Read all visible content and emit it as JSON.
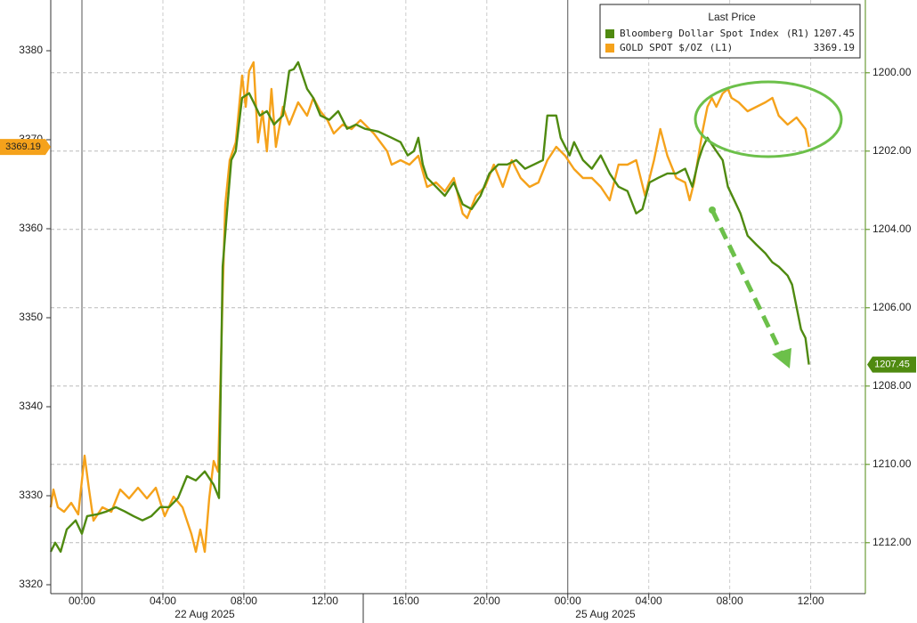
{
  "chart_data": {
    "type": "line",
    "legend_title": "Last Price",
    "legend": "top-right",
    "xlim": [
      -1.54,
      38.7
    ],
    "xticks": [
      {
        "value": 0,
        "label": "00:00"
      },
      {
        "value": 4,
        "label": "04:00"
      },
      {
        "value": 8,
        "label": "08:00"
      },
      {
        "value": 12,
        "label": "12:00"
      },
      {
        "value": 16,
        "label": "16:00"
      },
      {
        "value": 20,
        "label": "20:00"
      },
      {
        "value": 24,
        "label": "00:00"
      },
      {
        "value": 28,
        "label": "04:00"
      },
      {
        "value": 32,
        "label": "08:00"
      },
      {
        "value": 36,
        "label": "12:00"
      }
    ],
    "dates": [
      "22 Aug 2025",
      "25 Aug 2025"
    ],
    "ylim": [
      3319,
      3385
    ],
    "yticks": [
      3320,
      3330,
      3340,
      3350,
      3360,
      3370,
      3380
    ],
    "y2lim": [
      1213.3,
      1198.3
    ],
    "y2ticks": [
      {
        "value": 1200,
        "label": "1200.00"
      },
      {
        "value": 1202,
        "label": "1202.00"
      },
      {
        "value": 1204,
        "label": "1204.00"
      },
      {
        "value": 1206,
        "label": "1206.00"
      },
      {
        "value": 1208,
        "label": "1208.00"
      },
      {
        "value": 1210,
        "label": "1210.00"
      },
      {
        "value": 1212,
        "label": "1212.00"
      }
    ],
    "grid": true,
    "series": [
      {
        "name": "Bloomberg Dollar Spot Index",
        "axis_label": "(R1)",
        "last_value": 1207.45,
        "axis": "y2",
        "color": "#4f8a10",
        "x": [
          -1.54,
          -1.32,
          -1.05,
          -0.75,
          -0.31,
          0,
          0.26,
          0.79,
          1.23,
          1.67,
          2.11,
          2.55,
          2.99,
          3.43,
          3.87,
          4.31,
          4.75,
          5.19,
          5.63,
          6.07,
          6.51,
          6.77,
          6.95,
          7.16,
          7.38,
          7.6,
          7.91,
          8.26,
          8.48,
          8.79,
          9.14,
          9.49,
          9.93,
          10.24,
          10.46,
          10.68,
          11.12,
          11.43,
          11.78,
          12.22,
          12.66,
          13.1,
          13.54,
          13.98,
          14.64,
          15.3,
          15.74,
          16.09,
          16.4,
          16.62,
          16.84,
          17.05,
          17.49,
          17.93,
          18.37,
          18.81,
          19.25,
          19.69,
          20.13,
          20.57,
          21.01,
          21.45,
          21.89,
          22.33,
          22.77,
          22.99,
          23.43,
          23.65,
          24.09,
          24.31,
          24.75,
          25.19,
          25.63,
          26.07,
          26.51,
          26.95,
          27.38,
          27.69,
          28.04,
          28.48,
          28.92,
          29.36,
          29.8,
          30.15,
          30.46,
          30.68,
          30.9,
          31.34,
          31.65,
          31.91,
          32.22,
          32.53,
          32.88,
          33.32,
          33.76,
          34.11,
          34.42,
          34.86,
          35.08,
          35.3,
          35.52,
          35.74,
          35.91
        ],
        "values": [
          1212.23,
          1212.0,
          1212.23,
          1211.66,
          1211.43,
          1211.77,
          1211.32,
          1211.27,
          1211.2,
          1211.09,
          1211.2,
          1211.32,
          1211.43,
          1211.32,
          1211.09,
          1211.09,
          1210.86,
          1210.3,
          1210.41,
          1210.18,
          1210.52,
          1210.86,
          1204.95,
          1203.59,
          1202.23,
          1202.0,
          1200.64,
          1200.52,
          1200.75,
          1201.09,
          1200.98,
          1201.32,
          1201.09,
          1199.95,
          1199.91,
          1199.73,
          1200.41,
          1200.64,
          1201.09,
          1201.2,
          1200.98,
          1201.43,
          1201.32,
          1201.43,
          1201.5,
          1201.66,
          1201.77,
          1202.11,
          1202.0,
          1201.66,
          1202.34,
          1202.68,
          1202.91,
          1203.14,
          1202.8,
          1203.36,
          1203.48,
          1203.14,
          1202.57,
          1202.34,
          1202.34,
          1202.23,
          1202.45,
          1202.34,
          1202.23,
          1201.09,
          1201.09,
          1201.66,
          1202.11,
          1201.77,
          1202.23,
          1202.45,
          1202.11,
          1202.57,
          1202.91,
          1203.02,
          1203.59,
          1203.48,
          1202.8,
          1202.68,
          1202.57,
          1202.57,
          1202.45,
          1202.91,
          1202.23,
          1201.89,
          1201.66,
          1202.0,
          1202.23,
          1202.91,
          1203.25,
          1203.59,
          1204.16,
          1204.39,
          1204.61,
          1204.84,
          1204.95,
          1205.18,
          1205.41,
          1205.98,
          1206.55,
          1206.77,
          1207.45
        ]
      },
      {
        "name": "GOLD SPOT $/OZ",
        "axis_label": "(L1)",
        "last_value": 3369.19,
        "color": "#f5a21b",
        "x": [
          -1.54,
          -1.41,
          -1.19,
          -0.88,
          -0.53,
          -0.18,
          0.13,
          0.35,
          0.57,
          1.01,
          1.45,
          1.89,
          2.33,
          2.77,
          3.21,
          3.65,
          4.09,
          4.53,
          4.97,
          5.41,
          5.63,
          5.85,
          6.07,
          6.29,
          6.51,
          6.73,
          6.95,
          7.08,
          7.3,
          7.6,
          7.91,
          8.09,
          8.26,
          8.48,
          8.7,
          8.92,
          9.14,
          9.36,
          9.58,
          9.93,
          10.24,
          10.68,
          11.12,
          11.43,
          11.78,
          12.13,
          12.44,
          12.88,
          13.32,
          13.76,
          14.42,
          15.08,
          15.3,
          15.74,
          16.18,
          16.62,
          17.05,
          17.49,
          17.93,
          18.37,
          18.81,
          19.03,
          19.47,
          19.91,
          20.35,
          20.79,
          21.23,
          21.67,
          22.11,
          22.55,
          22.99,
          23.43,
          23.87,
          24.31,
          24.75,
          25.19,
          25.63,
          26.07,
          26.51,
          26.95,
          27.38,
          27.82,
          28.26,
          28.57,
          28.92,
          29.36,
          29.8,
          30.02,
          30.24,
          30.68,
          30.9,
          31.12,
          31.34,
          31.65,
          31.91,
          32.09,
          32.44,
          32.88,
          33.32,
          33.76,
          34.11,
          34.42,
          34.86,
          35.3,
          35.74,
          35.91
        ],
        "values": [
          3328.7,
          3330.7,
          3328.7,
          3328.2,
          3329.2,
          3327.9,
          3334.5,
          3330.7,
          3327.2,
          3328.7,
          3328.2,
          3330.7,
          3329.7,
          3330.9,
          3329.7,
          3330.9,
          3327.7,
          3329.9,
          3328.7,
          3325.7,
          3323.7,
          3326.2,
          3323.7,
          3329.7,
          3333.9,
          3332.7,
          3352.7,
          3362.7,
          3367.7,
          3369.7,
          3377.2,
          3373.7,
          3377.7,
          3378.7,
          3369.7,
          3373.2,
          3368.7,
          3375.7,
          3369.2,
          3373.7,
          3371.7,
          3374.2,
          3372.7,
          3374.7,
          3373.2,
          3372.2,
          3370.7,
          3371.7,
          3371.2,
          3372.2,
          3370.7,
          3368.7,
          3367.2,
          3367.7,
          3367.2,
          3368.2,
          3364.7,
          3365.2,
          3364.2,
          3365.7,
          3361.7,
          3361.2,
          3363.7,
          3364.7,
          3367.2,
          3364.7,
          3367.7,
          3365.7,
          3364.7,
          3365.2,
          3367.7,
          3369.2,
          3368.2,
          3366.7,
          3365.7,
          3365.7,
          3364.7,
          3363.2,
          3367.2,
          3367.2,
          3367.7,
          3363.7,
          3367.7,
          3371.2,
          3368.2,
          3365.7,
          3365.2,
          3363.2,
          3365.2,
          3371.2,
          3373.7,
          3374.7,
          3373.7,
          3375.2,
          3375.7,
          3374.7,
          3374.2,
          3373.2,
          3373.7,
          3374.2,
          3374.7,
          3372.7,
          3371.7,
          3372.5,
          3371.2,
          3369.19
        ]
      }
    ]
  }
}
